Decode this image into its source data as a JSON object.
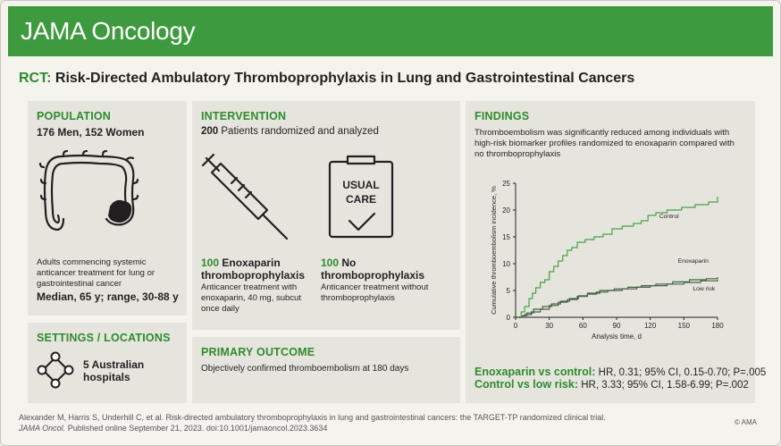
{
  "banner": {
    "title": "JAMA Oncology"
  },
  "rct": {
    "tag": "RCT:",
    "title": "Risk-Directed Ambulatory Thromboprophylaxis in Lung and Gastrointestinal Cancers"
  },
  "population": {
    "header": "POPULATION",
    "counts": "176 Men, 152 Women",
    "description": "Adults commencing systemic anticancer treatment for lung or gastrointestinal cancer",
    "age": "Median, 65 y; range, 30-88 y"
  },
  "settings": {
    "header": "SETTINGS / LOCATIONS",
    "sites": "5 Australian hospitals"
  },
  "intervention": {
    "header": "INTERVENTION",
    "randomized_num": "200",
    "randomized_text": "Patients randomized and analyzed",
    "arm1": {
      "num": "100",
      "title": "Enoxaparin thromboprophylaxis",
      "desc": "Anticancer treatment with enoxaparin, 40 mg, subcut once daily"
    },
    "arm2": {
      "num": "100",
      "title": "No thromboprophylaxis",
      "desc": "Anticancer treatment without thromboprophylaxis"
    },
    "usual_care_line1": "USUAL",
    "usual_care_line2": "CARE"
  },
  "outcome": {
    "header": "PRIMARY OUTCOME",
    "text": "Objectively confirmed thromboembolism at 180 days"
  },
  "findings": {
    "header": "FINDINGS",
    "text": "Thromboembolism was significantly reduced among individuals with high-risk biomarker profiles randomized to enoxaparin compared with no thromboprophylaxis",
    "result1_label": "Enoxaparin vs control:",
    "result1_stats": "HR, 0.31; 95% CI, 0.15-0.70; P=.005",
    "result2_label": "Control vs low risk:",
    "result2_stats": "HR, 3.33; 95% CI, 1.58-6.99; P=.002"
  },
  "chart_data": {
    "type": "line",
    "xlabel": "Analysis time, d",
    "ylabel": "Cumulative thromboembolism incidence, %",
    "xlim": [
      0,
      180
    ],
    "ylim": [
      0,
      25
    ],
    "xticks": [
      0,
      30,
      60,
      90,
      120,
      150,
      180
    ],
    "yticks": [
      0,
      5,
      10,
      15,
      20,
      25
    ],
    "series": [
      {
        "name": "Control",
        "color": "#4aa04a",
        "points": [
          [
            0,
            0
          ],
          [
            5,
            1
          ],
          [
            8,
            2
          ],
          [
            12,
            3.5
          ],
          [
            15,
            4.5
          ],
          [
            18,
            5.5
          ],
          [
            22,
            6.5
          ],
          [
            26,
            7
          ],
          [
            30,
            8.5
          ],
          [
            34,
            9.5
          ],
          [
            38,
            10.5
          ],
          [
            42,
            11.5
          ],
          [
            46,
            12.5
          ],
          [
            50,
            13
          ],
          [
            55,
            14
          ],
          [
            62,
            14.5
          ],
          [
            70,
            15
          ],
          [
            78,
            15.5
          ],
          [
            86,
            16.5
          ],
          [
            95,
            17
          ],
          [
            105,
            17.5
          ],
          [
            112,
            18
          ],
          [
            118,
            19
          ],
          [
            125,
            19.5
          ],
          [
            135,
            20
          ],
          [
            148,
            20.5
          ],
          [
            160,
            21
          ],
          [
            172,
            21.5
          ],
          [
            180,
            22.5
          ]
        ]
      },
      {
        "name": "Enoxaparin",
        "color": "#2f6f2f",
        "points": [
          [
            0,
            0
          ],
          [
            6,
            0.3
          ],
          [
            10,
            0.8
          ],
          [
            16,
            1.5
          ],
          [
            24,
            2
          ],
          [
            32,
            2.5
          ],
          [
            40,
            3
          ],
          [
            48,
            3.5
          ],
          [
            56,
            4
          ],
          [
            64,
            4.5
          ],
          [
            75,
            5
          ],
          [
            88,
            5.3
          ],
          [
            100,
            5.6
          ],
          [
            112,
            5.9
          ],
          [
            125,
            6.2
          ],
          [
            140,
            6.6
          ],
          [
            155,
            7
          ],
          [
            170,
            7.2
          ],
          [
            180,
            7.5
          ]
        ]
      },
      {
        "name": "Low risk",
        "color": "#555555",
        "points": [
          [
            0,
            0
          ],
          [
            8,
            0.5
          ],
          [
            14,
            1
          ],
          [
            22,
            1.5
          ],
          [
            30,
            2.2
          ],
          [
            38,
            2.8
          ],
          [
            46,
            3.3
          ],
          [
            55,
            3.9
          ],
          [
            64,
            4.3
          ],
          [
            72,
            4.7
          ],
          [
            82,
            5
          ],
          [
            95,
            5.3
          ],
          [
            108,
            5.6
          ],
          [
            120,
            5.9
          ],
          [
            135,
            6.2
          ],
          [
            150,
            6.5
          ],
          [
            165,
            6.8
          ],
          [
            180,
            7
          ]
        ]
      }
    ]
  },
  "citation": {
    "line1": "Alexander M, Harris S, Underhill C, et al. Risk-directed ambulatory thromboprophylaxis in lung and gastrointestinal cancers: the TARGET-TP randomized clinical trial.",
    "journal": "JAMA Oncol.",
    "line2": "Published online September 21, 2023. doi:10.1001/jamaoncol.2023.3634",
    "copyright": "© AMA"
  }
}
